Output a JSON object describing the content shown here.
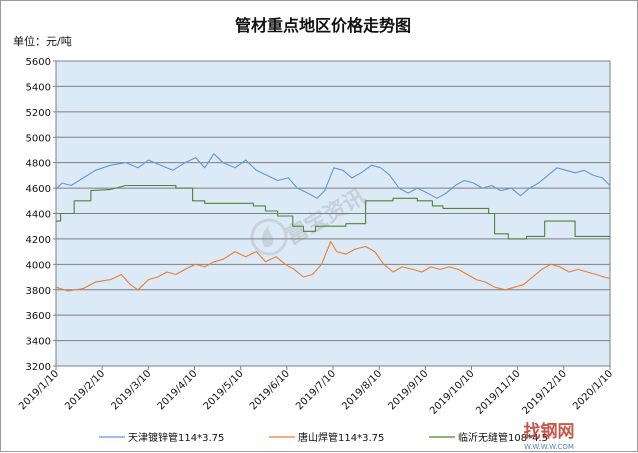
{
  "chart_data": {
    "type": "line",
    "title": "管材重点地区价格走势图",
    "unit_label": "单位：元/吨",
    "ylim": [
      3200,
      5600
    ],
    "yticks": [
      3200,
      3400,
      3600,
      3800,
      4000,
      4200,
      4400,
      4600,
      4800,
      5000,
      5200,
      5400,
      5600
    ],
    "xlim": [
      "2019-01-10",
      "2020-01-10"
    ],
    "xticks": [
      "2019/1/10",
      "2019/2/10",
      "2019/3/10",
      "2019/4/10",
      "2019/5/10",
      "2019/6/10",
      "2019/7/10",
      "2019/8/10",
      "2019/9/10",
      "2019/10/10",
      "2019/11/10",
      "2019/12/10",
      "2020/1/10"
    ],
    "grid": "horizontal",
    "legend": "bottom",
    "series": [
      {
        "name": "天津镀锌管114*3.75",
        "color": "#5b9bd5",
        "points": [
          [
            "2019-01-10",
            4590
          ],
          [
            "2019-01-14",
            4640
          ],
          [
            "2019-01-20",
            4620
          ],
          [
            "2019-01-28",
            4680
          ],
          [
            "2019-02-05",
            4740
          ],
          [
            "2019-02-15",
            4780
          ],
          [
            "2019-02-25",
            4800
          ],
          [
            "2019-03-05",
            4760
          ],
          [
            "2019-03-12",
            4820
          ],
          [
            "2019-03-20",
            4780
          ],
          [
            "2019-03-28",
            4740
          ],
          [
            "2019-04-05",
            4800
          ],
          [
            "2019-04-12",
            4840
          ],
          [
            "2019-04-18",
            4760
          ],
          [
            "2019-04-24",
            4870
          ],
          [
            "2019-04-30",
            4800
          ],
          [
            "2019-05-08",
            4760
          ],
          [
            "2019-05-15",
            4820
          ],
          [
            "2019-05-22",
            4740
          ],
          [
            "2019-05-29",
            4700
          ],
          [
            "2019-06-05",
            4660
          ],
          [
            "2019-06-12",
            4680
          ],
          [
            "2019-06-18",
            4600
          ],
          [
            "2019-06-25",
            4560
          ],
          [
            "2019-07-01",
            4520
          ],
          [
            "2019-07-06",
            4580
          ],
          [
            "2019-07-12",
            4760
          ],
          [
            "2019-07-18",
            4740
          ],
          [
            "2019-07-24",
            4680
          ],
          [
            "2019-07-30",
            4720
          ],
          [
            "2019-08-06",
            4780
          ],
          [
            "2019-08-12",
            4760
          ],
          [
            "2019-08-18",
            4700
          ],
          [
            "2019-08-24",
            4600
          ],
          [
            "2019-08-30",
            4560
          ],
          [
            "2019-09-05",
            4600
          ],
          [
            "2019-09-12",
            4560
          ],
          [
            "2019-09-18",
            4520
          ],
          [
            "2019-09-24",
            4560
          ],
          [
            "2019-09-30",
            4620
          ],
          [
            "2019-10-06",
            4660
          ],
          [
            "2019-10-12",
            4640
          ],
          [
            "2019-10-18",
            4600
          ],
          [
            "2019-10-24",
            4620
          ],
          [
            "2019-10-30",
            4580
          ],
          [
            "2019-11-06",
            4600
          ],
          [
            "2019-11-12",
            4540
          ],
          [
            "2019-11-18",
            4600
          ],
          [
            "2019-11-24",
            4640
          ],
          [
            "2019-11-30",
            4700
          ],
          [
            "2019-12-06",
            4760
          ],
          [
            "2019-12-12",
            4740
          ],
          [
            "2019-12-18",
            4720
          ],
          [
            "2019-12-24",
            4740
          ],
          [
            "2019-12-30",
            4700
          ],
          [
            "2020-01-05",
            4680
          ],
          [
            "2020-01-10",
            4620
          ]
        ]
      },
      {
        "name": "唐山焊管114*3.75",
        "color": "#ed7d31",
        "points": [
          [
            "2019-01-10",
            3820
          ],
          [
            "2019-01-18",
            3790
          ],
          [
            "2019-01-28",
            3810
          ],
          [
            "2019-02-05",
            3860
          ],
          [
            "2019-02-15",
            3880
          ],
          [
            "2019-02-22",
            3920
          ],
          [
            "2019-02-28",
            3840
          ],
          [
            "2019-03-05",
            3800
          ],
          [
            "2019-03-12",
            3880
          ],
          [
            "2019-03-18",
            3900
          ],
          [
            "2019-03-24",
            3940
          ],
          [
            "2019-03-30",
            3920
          ],
          [
            "2019-04-05",
            3960
          ],
          [
            "2019-04-12",
            4000
          ],
          [
            "2019-04-18",
            3980
          ],
          [
            "2019-04-24",
            4020
          ],
          [
            "2019-04-30",
            4040
          ],
          [
            "2019-05-08",
            4100
          ],
          [
            "2019-05-15",
            4060
          ],
          [
            "2019-05-22",
            4100
          ],
          [
            "2019-05-28",
            4020
          ],
          [
            "2019-06-04",
            4060
          ],
          [
            "2019-06-10",
            4000
          ],
          [
            "2019-06-16",
            3960
          ],
          [
            "2019-06-22",
            3900
          ],
          [
            "2019-06-28",
            3920
          ],
          [
            "2019-07-04",
            4000
          ],
          [
            "2019-07-10",
            4180
          ],
          [
            "2019-07-14",
            4100
          ],
          [
            "2019-07-20",
            4080
          ],
          [
            "2019-07-26",
            4120
          ],
          [
            "2019-08-02",
            4140
          ],
          [
            "2019-08-08",
            4100
          ],
          [
            "2019-08-14",
            4000
          ],
          [
            "2019-08-20",
            3940
          ],
          [
            "2019-08-26",
            3980
          ],
          [
            "2019-09-02",
            3960
          ],
          [
            "2019-09-08",
            3940
          ],
          [
            "2019-09-14",
            3980
          ],
          [
            "2019-09-20",
            3960
          ],
          [
            "2019-09-26",
            3980
          ],
          [
            "2019-10-02",
            3960
          ],
          [
            "2019-10-08",
            3920
          ],
          [
            "2019-10-14",
            3880
          ],
          [
            "2019-10-20",
            3860
          ],
          [
            "2019-10-26",
            3820
          ],
          [
            "2019-11-02",
            3800
          ],
          [
            "2019-11-08",
            3820
          ],
          [
            "2019-11-14",
            3840
          ],
          [
            "2019-11-20",
            3900
          ],
          [
            "2019-11-26",
            3960
          ],
          [
            "2019-12-02",
            4000
          ],
          [
            "2019-12-08",
            3980
          ],
          [
            "2019-12-14",
            3940
          ],
          [
            "2019-12-20",
            3960
          ],
          [
            "2019-12-26",
            3940
          ],
          [
            "2020-01-01",
            3920
          ],
          [
            "2020-01-06",
            3900
          ],
          [
            "2020-01-10",
            3890
          ]
        ]
      },
      {
        "name": "临沂无缝管108*4.5",
        "color": "#548235",
        "points": [
          [
            "2019-01-10",
            4340
          ],
          [
            "2019-01-13",
            4340
          ],
          [
            "2019-01-13",
            4400
          ],
          [
            "2019-01-22",
            4400
          ],
          [
            "2019-01-22",
            4500
          ],
          [
            "2019-02-02",
            4500
          ],
          [
            "2019-02-02",
            4580
          ],
          [
            "2019-02-15",
            4590
          ],
          [
            "2019-02-25",
            4620
          ],
          [
            "2019-03-30",
            4620
          ],
          [
            "2019-03-30",
            4600
          ],
          [
            "2019-04-10",
            4600
          ],
          [
            "2019-04-10",
            4500
          ],
          [
            "2019-04-18",
            4500
          ],
          [
            "2019-04-18",
            4480
          ],
          [
            "2019-05-20",
            4480
          ],
          [
            "2019-05-20",
            4460
          ],
          [
            "2019-05-28",
            4460
          ],
          [
            "2019-05-28",
            4420
          ],
          [
            "2019-06-05",
            4420
          ],
          [
            "2019-06-05",
            4380
          ],
          [
            "2019-06-15",
            4380
          ],
          [
            "2019-06-15",
            4300
          ],
          [
            "2019-06-22",
            4300
          ],
          [
            "2019-06-22",
            4260
          ],
          [
            "2019-06-30",
            4260
          ],
          [
            "2019-06-30",
            4300
          ],
          [
            "2019-07-20",
            4300
          ],
          [
            "2019-07-20",
            4320
          ],
          [
            "2019-08-02",
            4320
          ],
          [
            "2019-08-02",
            4500
          ],
          [
            "2019-08-20",
            4500
          ],
          [
            "2019-08-20",
            4520
          ],
          [
            "2019-09-05",
            4520
          ],
          [
            "2019-09-05",
            4500
          ],
          [
            "2019-09-15",
            4500
          ],
          [
            "2019-09-15",
            4460
          ],
          [
            "2019-09-22",
            4460
          ],
          [
            "2019-09-22",
            4440
          ],
          [
            "2019-10-22",
            4440
          ],
          [
            "2019-10-22",
            4400
          ],
          [
            "2019-10-26",
            4400
          ],
          [
            "2019-10-26",
            4240
          ],
          [
            "2019-11-04",
            4240
          ],
          [
            "2019-11-04",
            4200
          ],
          [
            "2019-11-16",
            4200
          ],
          [
            "2019-11-16",
            4220
          ],
          [
            "2019-11-28",
            4220
          ],
          [
            "2019-11-28",
            4340
          ],
          [
            "2019-12-18",
            4340
          ],
          [
            "2019-12-18",
            4220
          ],
          [
            "2020-01-10",
            4220
          ]
        ]
      }
    ]
  },
  "watermark": {
    "text": "富宝资讯",
    "logo": "fubao-flame-logo",
    "site": "找钢网",
    "url": "W.W.W.W.COM"
  }
}
